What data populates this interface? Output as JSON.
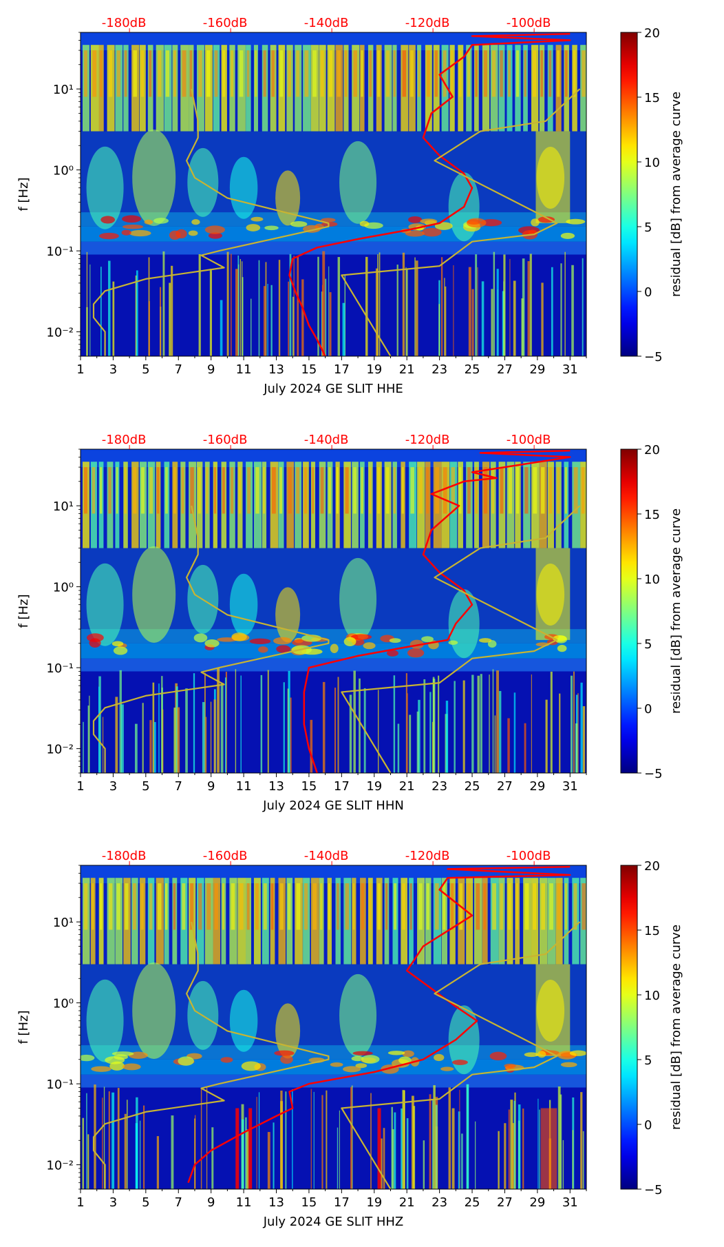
{
  "figure": {
    "background": "#ffffff"
  },
  "colorbar": {
    "label": "residual [dB] from average curve",
    "ticks": [
      20,
      15,
      10,
      5,
      0,
      -5
    ],
    "tick_labels": [
      "20",
      "15",
      "10",
      "5",
      "0",
      "−5"
    ],
    "range": [
      -5,
      20
    ],
    "colormap": "jet"
  },
  "chart_data": [
    {
      "type": "heatmap",
      "title": "",
      "xlabel": "July 2024 GE SLIT  HHE",
      "ylabel": "f [Hz]",
      "xlim": [
        1,
        32
      ],
      "ylim": [
        0.005,
        50
      ],
      "yscale": "log",
      "x_ticks": [
        1,
        3,
        5,
        7,
        9,
        11,
        13,
        15,
        17,
        19,
        21,
        23,
        25,
        27,
        29,
        31
      ],
      "y_ticks": [
        "10⁻²",
        "10⁻¹",
        "10⁰",
        "10¹"
      ],
      "top_axis": {
        "color": "#ff0000",
        "labels": [
          "-180dB",
          "-160dB",
          "-140dB",
          "-120dB",
          "-100dB"
        ],
        "x": [
          4,
          10.2,
          16.4,
          22.6,
          28.8
        ]
      },
      "series": [
        {
          "color": "#ff0000",
          "points": [
            [
              16,
              0.005
            ],
            [
              15.5,
              0.008
            ],
            [
              15,
              0.012
            ],
            [
              14.6,
              0.02
            ],
            [
              14.2,
              0.03
            ],
            [
              13.8,
              0.05
            ],
            [
              14,
              0.08
            ],
            [
              15.5,
              0.11
            ],
            [
              18,
              0.14
            ],
            [
              21,
              0.18
            ],
            [
              23,
              0.22
            ],
            [
              24.5,
              0.35
            ],
            [
              25,
              0.6
            ],
            [
              24.5,
              0.9
            ],
            [
              23,
              1.5
            ],
            [
              22,
              2.5
            ],
            [
              22.5,
              5
            ],
            [
              23.8,
              8
            ],
            [
              23,
              15
            ],
            [
              24.5,
              25
            ],
            [
              25,
              35
            ],
            [
              31,
              40
            ],
            [
              25,
              45
            ],
            [
              31,
              48
            ]
          ]
        },
        {
          "color": "#c8b432",
          "points": [
            [
              2.5,
              0.005
            ],
            [
              2.5,
              0.01
            ],
            [
              1.8,
              0.015
            ],
            [
              1.8,
              0.022
            ],
            [
              2.5,
              0.032
            ],
            [
              5,
              0.045
            ],
            [
              9.8,
              0.062
            ],
            [
              8.4,
              0.088
            ],
            [
              9.5,
              0.1
            ],
            [
              16.2,
              0.2
            ],
            [
              16.2,
              0.22
            ],
            [
              10,
              0.45
            ],
            [
              8,
              0.8
            ],
            [
              7.5,
              1.3
            ],
            [
              8.2,
              2.5
            ],
            [
              8.2,
              4
            ],
            [
              7.8,
              10
            ]
          ]
        },
        {
          "color": "#c8b432",
          "points": [
            [
              20,
              0.005
            ],
            [
              17,
              0.05
            ],
            [
              23,
              0.065
            ],
            [
              25,
              0.13
            ],
            [
              28.8,
              0.16
            ],
            [
              30.2,
              0.22
            ],
            [
              22.7,
              1.3
            ],
            [
              25.5,
              3
            ],
            [
              29.5,
              4
            ],
            [
              31.6,
              10
            ]
          ]
        }
      ]
    },
    {
      "type": "heatmap",
      "title": "",
      "xlabel": "July 2024 GE SLIT  HHN",
      "ylabel": "f [Hz]",
      "xlim": [
        1,
        32
      ],
      "ylim": [
        0.005,
        50
      ],
      "yscale": "log",
      "x_ticks": [
        1,
        3,
        5,
        7,
        9,
        11,
        13,
        15,
        17,
        19,
        21,
        23,
        25,
        27,
        29,
        31
      ],
      "y_ticks": [
        "10⁻²",
        "10⁻¹",
        "10⁰",
        "10¹"
      ],
      "top_axis": {
        "color": "#ff0000",
        "labels": [
          "-180dB",
          "-160dB",
          "-140dB",
          "-120dB",
          "-100dB"
        ],
        "x": [
          4,
          10.2,
          16.4,
          22.6,
          28.8
        ]
      },
      "series": [
        {
          "color": "#ff0000",
          "points": [
            [
              15.5,
              0.005
            ],
            [
              15,
              0.01
            ],
            [
              14.7,
              0.02
            ],
            [
              14.7,
              0.05
            ],
            [
              15,
              0.1
            ],
            [
              18,
              0.14
            ],
            [
              21,
              0.18
            ],
            [
              23.5,
              0.22
            ],
            [
              24,
              0.35
            ],
            [
              25,
              0.6
            ],
            [
              24.5,
              0.9
            ],
            [
              23,
              1.5
            ],
            [
              22,
              2.5
            ],
            [
              22.5,
              5
            ],
            [
              24.2,
              10
            ],
            [
              22.5,
              14
            ],
            [
              24.5,
              20
            ],
            [
              26.5,
              22
            ],
            [
              25,
              26
            ],
            [
              31,
              40
            ],
            [
              25.5,
              45
            ],
            [
              31,
              48
            ]
          ]
        },
        {
          "color": "#c8b432",
          "points": [
            [
              2.5,
              0.005
            ],
            [
              2.5,
              0.01
            ],
            [
              1.8,
              0.015
            ],
            [
              1.8,
              0.022
            ],
            [
              2.5,
              0.032
            ],
            [
              5,
              0.045
            ],
            [
              9.8,
              0.062
            ],
            [
              8.4,
              0.088
            ],
            [
              9.5,
              0.1
            ],
            [
              16.2,
              0.2
            ],
            [
              16.2,
              0.22
            ],
            [
              10,
              0.45
            ],
            [
              8,
              0.8
            ],
            [
              7.5,
              1.3
            ],
            [
              8.2,
              2.5
            ],
            [
              8.2,
              4
            ],
            [
              7.8,
              10
            ]
          ]
        },
        {
          "color": "#c8b432",
          "points": [
            [
              20,
              0.005
            ],
            [
              17,
              0.05
            ],
            [
              23,
              0.065
            ],
            [
              25,
              0.13
            ],
            [
              28.8,
              0.16
            ],
            [
              30.2,
              0.22
            ],
            [
              22.7,
              1.3
            ],
            [
              25.5,
              3
            ],
            [
              29.5,
              4
            ],
            [
              31.6,
              10
            ]
          ]
        }
      ]
    },
    {
      "type": "heatmap",
      "title": "",
      "xlabel": "July 2024 GE SLIT  HHZ",
      "ylabel": "f [Hz]",
      "xlim": [
        1,
        32
      ],
      "ylim": [
        0.005,
        50
      ],
      "yscale": "log",
      "x_ticks": [
        1,
        3,
        5,
        7,
        9,
        11,
        13,
        15,
        17,
        19,
        21,
        23,
        25,
        27,
        29,
        31
      ],
      "y_ticks": [
        "10⁻²",
        "10⁻¹",
        "10⁰",
        "10¹"
      ],
      "top_axis": {
        "color": "#ff0000",
        "labels": [
          "-180dB",
          "-160dB",
          "-140dB",
          "-120dB",
          "-100dB"
        ],
        "x": [
          4,
          10.2,
          16.4,
          22.6,
          28.8
        ]
      },
      "series": [
        {
          "color": "#ff0000",
          "points": [
            [
              7.6,
              0.006
            ],
            [
              8,
              0.01
            ],
            [
              9,
              0.015
            ],
            [
              11,
              0.025
            ],
            [
              13,
              0.04
            ],
            [
              14,
              0.05
            ],
            [
              13.8,
              0.08
            ],
            [
              15,
              0.1
            ],
            [
              19,
              0.14
            ],
            [
              22,
              0.2
            ],
            [
              24,
              0.35
            ],
            [
              25.3,
              0.6
            ],
            [
              24,
              0.9
            ],
            [
              22.5,
              1.5
            ],
            [
              21,
              2.5
            ],
            [
              21.5,
              3.5
            ],
            [
              22,
              5
            ],
            [
              25,
              12
            ],
            [
              23,
              25
            ],
            [
              23.5,
              35
            ],
            [
              31,
              38
            ],
            [
              23.5,
              45
            ],
            [
              31,
              48
            ]
          ]
        },
        {
          "color": "#c8b432",
          "points": [
            [
              2.5,
              0.005
            ],
            [
              2.5,
              0.01
            ],
            [
              1.8,
              0.015
            ],
            [
              1.8,
              0.022
            ],
            [
              2.5,
              0.032
            ],
            [
              5,
              0.045
            ],
            [
              9.8,
              0.062
            ],
            [
              8.4,
              0.088
            ],
            [
              9.5,
              0.1
            ],
            [
              16.2,
              0.2
            ],
            [
              16.2,
              0.22
            ],
            [
              10,
              0.45
            ],
            [
              8,
              0.8
            ],
            [
              7.5,
              1.3
            ],
            [
              8.2,
              2.5
            ],
            [
              8.2,
              4
            ],
            [
              7.8,
              10
            ]
          ]
        },
        {
          "color": "#c8b432",
          "points": [
            [
              20,
              0.005
            ],
            [
              17,
              0.05
            ],
            [
              23,
              0.065
            ],
            [
              25,
              0.13
            ],
            [
              28.8,
              0.16
            ],
            [
              30.2,
              0.22
            ],
            [
              22.7,
              1.3
            ],
            [
              25.5,
              3
            ],
            [
              29.5,
              4
            ],
            [
              31.6,
              10
            ]
          ]
        }
      ]
    }
  ]
}
